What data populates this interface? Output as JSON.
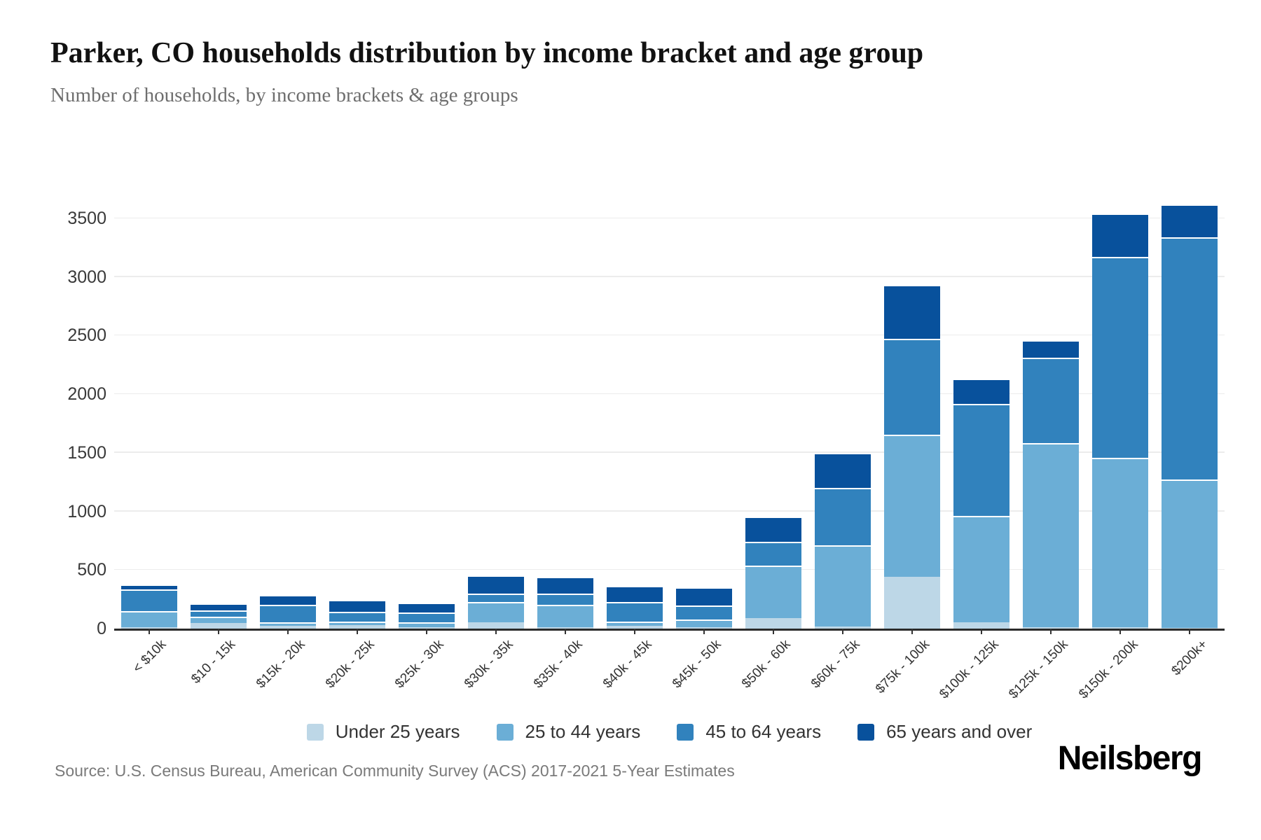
{
  "header": {
    "title": "Parker, CO households distribution by income bracket and age group",
    "subtitle": "Number of households, by income brackets & age groups"
  },
  "chart_data": {
    "type": "bar",
    "stacked": true,
    "title": "Parker, CO households distribution by income bracket and age group",
    "xlabel": "",
    "ylabel": "",
    "ylim": [
      0,
      3500
    ],
    "yticks": [
      0,
      500,
      1000,
      1500,
      2000,
      2500,
      3000,
      3500
    ],
    "grid": "horizontal",
    "legend_position": "bottom",
    "categories": [
      "< $10k",
      "$10 - 15k",
      "$15k - 20k",
      "$20k - 25k",
      "$25k - 30k",
      "$30k - 35k",
      "$35k - 40k",
      "$40k - 45k",
      "$45k - 50k",
      "$50k - 60k",
      "$60k - 75k",
      "$75k - 100k",
      "$100k - 125k",
      "$125k - 150k",
      "$150k - 200k",
      "$200k+"
    ],
    "series": [
      {
        "name": "Under 25 years",
        "color": "#bdd7e7",
        "values": [
          10,
          50,
          25,
          30,
          10,
          55,
          15,
          25,
          10,
          90,
          20,
          445,
          55,
          10,
          10,
          5
        ]
      },
      {
        "name": "25 to 44 years",
        "color": "#6baed6",
        "values": [
          140,
          50,
          30,
          30,
          45,
          170,
          190,
          35,
          65,
          445,
          690,
          1210,
          905,
          1570,
          1450,
          1265
        ]
      },
      {
        "name": "45 to 64 years",
        "color": "#3182bd",
        "values": [
          185,
          55,
          150,
          85,
          85,
          75,
          95,
          170,
          120,
          205,
          490,
          815,
          955,
          730,
          1710,
          2070
        ]
      },
      {
        "name": "65 years and over",
        "color": "#08519c",
        "values": [
          40,
          60,
          80,
          100,
          80,
          155,
          140,
          135,
          160,
          215,
          300,
          465,
          220,
          150,
          370,
          280
        ]
      }
    ]
  },
  "footer": {
    "source": "Source: U.S. Census Bureau, American Community Survey (ACS) 2017-2021 5-Year Estimates",
    "brand": "Neilsberg"
  }
}
